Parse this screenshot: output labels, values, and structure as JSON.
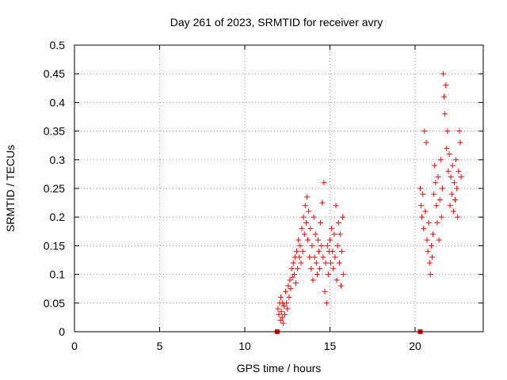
{
  "chart_data": {
    "type": "scatter",
    "title": "Day 261 of 2023, SRMTID for receiver avry",
    "xlabel": "GPS time / hours",
    "ylabel": "SRMTID / TECUs",
    "xlim": [
      0,
      24
    ],
    "ylim": [
      0,
      0.5
    ],
    "xticks": [
      0,
      5,
      10,
      15,
      20
    ],
    "yticks": [
      0,
      0.05,
      0.1,
      0.15,
      0.2,
      0.25,
      0.3,
      0.35,
      0.4,
      0.45,
      0.5
    ],
    "ytick_labels": [
      "0",
      "0.05",
      "0.1",
      "0.15",
      "0.2",
      "0.25",
      "0.3",
      "0.35",
      "0.4",
      "0.45",
      "0.5"
    ],
    "xtick_labels": [
      "0",
      "5",
      "10",
      "15",
      "20"
    ],
    "grid": true,
    "marker": "+",
    "color": "#ff0000",
    "series": [
      {
        "points": [
          [
            11.9,
            0.0
          ],
          [
            20.3,
            0.0
          ],
          [
            11.95,
            0.04
          ],
          [
            12.0,
            0.03
          ],
          [
            12.05,
            0.05
          ],
          [
            12.1,
            0.02
          ],
          [
            12.12,
            0.06
          ],
          [
            12.15,
            0.035
          ],
          [
            12.2,
            0.025
          ],
          [
            12.22,
            0.05
          ],
          [
            12.25,
            0.015
          ],
          [
            12.3,
            0.045
          ],
          [
            12.35,
            0.03
          ],
          [
            12.4,
            0.07
          ],
          [
            12.45,
            0.05
          ],
          [
            12.5,
            0.04
          ],
          [
            12.55,
            0.08
          ],
          [
            12.6,
            0.06
          ],
          [
            12.65,
            0.09
          ],
          [
            12.7,
            0.075
          ],
          [
            12.75,
            0.11
          ],
          [
            12.8,
            0.095
          ],
          [
            12.85,
            0.12
          ],
          [
            12.9,
            0.1
          ],
          [
            12.95,
            0.13
          ],
          [
            13.0,
            0.085
          ],
          [
            13.05,
            0.14
          ],
          [
            13.1,
            0.11
          ],
          [
            13.15,
            0.16
          ],
          [
            13.2,
            0.13
          ],
          [
            13.25,
            0.15
          ],
          [
            13.3,
            0.12
          ],
          [
            13.35,
            0.18
          ],
          [
            13.4,
            0.14
          ],
          [
            13.45,
            0.2
          ],
          [
            13.5,
            0.17
          ],
          [
            13.55,
            0.22
          ],
          [
            13.6,
            0.19
          ],
          [
            13.65,
            0.235
          ],
          [
            13.7,
            0.16
          ],
          [
            13.75,
            0.21
          ],
          [
            13.8,
            0.13
          ],
          [
            13.85,
            0.18
          ],
          [
            13.9,
            0.11
          ],
          [
            13.95,
            0.15
          ],
          [
            14.0,
            0.09
          ],
          [
            14.05,
            0.2
          ],
          [
            14.1,
            0.13
          ],
          [
            14.15,
            0.17
          ],
          [
            14.2,
            0.12
          ],
          [
            14.25,
            0.1
          ],
          [
            14.3,
            0.16
          ],
          [
            14.35,
            0.14
          ],
          [
            14.4,
            0.11
          ],
          [
            14.45,
            0.19
          ],
          [
            14.5,
            0.15
          ],
          [
            14.55,
            0.225
          ],
          [
            14.6,
            0.13
          ],
          [
            14.65,
            0.26
          ],
          [
            14.7,
            0.07
          ],
          [
            14.75,
            0.12
          ],
          [
            14.8,
            0.05
          ],
          [
            14.85,
            0.15
          ],
          [
            14.9,
            0.1
          ],
          [
            14.95,
            0.14
          ],
          [
            15.0,
            0.16
          ],
          [
            15.05,
            0.12
          ],
          [
            15.1,
            0.18
          ],
          [
            15.15,
            0.14
          ],
          [
            15.2,
            0.11
          ],
          [
            15.25,
            0.17
          ],
          [
            15.3,
            0.13
          ],
          [
            15.35,
            0.22
          ],
          [
            15.4,
            0.09
          ],
          [
            15.45,
            0.15
          ],
          [
            15.5,
            0.19
          ],
          [
            15.55,
            0.12
          ],
          [
            15.6,
            0.17
          ],
          [
            15.65,
            0.08
          ],
          [
            15.7,
            0.14
          ],
          [
            15.75,
            0.2
          ],
          [
            15.78,
            0.1
          ],
          [
            20.3,
            0.25
          ],
          [
            20.35,
            0.22
          ],
          [
            20.4,
            0.2
          ],
          [
            20.45,
            0.24
          ],
          [
            20.5,
            0.18
          ],
          [
            20.55,
            0.35
          ],
          [
            20.6,
            0.21
          ],
          [
            20.65,
            0.33
          ],
          [
            20.7,
            0.16
          ],
          [
            20.75,
            0.14
          ],
          [
            20.8,
            0.19
          ],
          [
            20.85,
            0.12
          ],
          [
            20.9,
            0.1
          ],
          [
            20.95,
            0.15
          ],
          [
            21.0,
            0.13
          ],
          [
            21.05,
            0.17
          ],
          [
            21.1,
            0.24
          ],
          [
            21.15,
            0.29
          ],
          [
            21.2,
            0.26
          ],
          [
            21.25,
            0.22
          ],
          [
            21.3,
            0.19
          ],
          [
            21.35,
            0.27
          ],
          [
            21.4,
            0.16
          ],
          [
            21.45,
            0.23
          ],
          [
            21.5,
            0.3
          ],
          [
            21.55,
            0.2
          ],
          [
            21.6,
            0.25
          ],
          [
            21.65,
            0.45
          ],
          [
            21.7,
            0.41
          ],
          [
            21.75,
            0.38
          ],
          [
            21.8,
            0.43
          ],
          [
            21.85,
            0.32
          ],
          [
            21.9,
            0.35
          ],
          [
            21.95,
            0.28
          ],
          [
            22.0,
            0.31
          ],
          [
            22.05,
            0.22
          ],
          [
            22.1,
            0.27
          ],
          [
            22.15,
            0.24
          ],
          [
            22.2,
            0.29
          ],
          [
            22.25,
            0.21
          ],
          [
            22.3,
            0.26
          ],
          [
            22.35,
            0.23
          ],
          [
            22.4,
            0.3
          ],
          [
            22.45,
            0.25
          ],
          [
            22.5,
            0.2
          ],
          [
            22.55,
            0.28
          ],
          [
            22.6,
            0.35
          ],
          [
            22.65,
            0.33
          ],
          [
            22.7,
            0.27
          ]
        ]
      }
    ]
  }
}
